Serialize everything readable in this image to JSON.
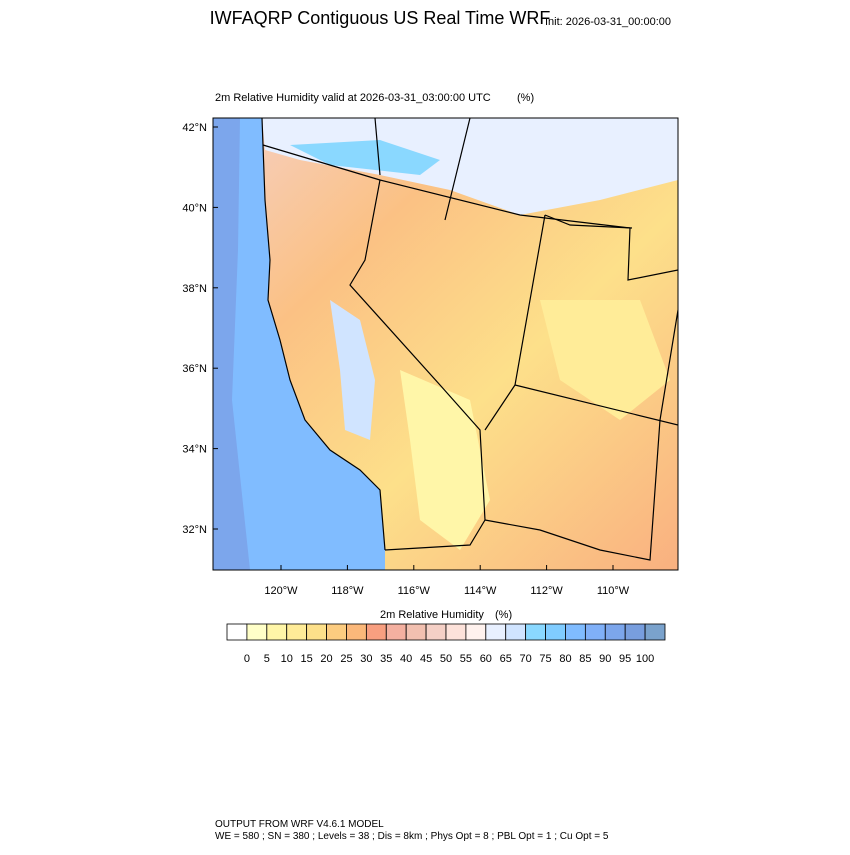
{
  "title": "IWFAQRP Contiguous US Real Time WRF",
  "init": "Init: 2026-03-31_00:00:00",
  "subtitle": "2m Relative Humidity valid at 2026-03-31_03:00:00 UTC",
  "subtitle_units": "(%)",
  "map": {
    "lat_labels": [
      "42°N",
      "40°N",
      "38°N",
      "36°N",
      "34°N",
      "32°N"
    ],
    "lon_labels": [
      "120°W",
      "118°W",
      "116°W",
      "114°W",
      "112°W",
      "110°W"
    ]
  },
  "colorbar": {
    "title": "2m Relative Humidity",
    "units": "(%)",
    "labels": [
      0,
      5,
      10,
      15,
      20,
      25,
      30,
      35,
      40,
      45,
      50,
      55,
      60,
      65,
      70,
      75,
      80,
      85,
      90,
      95,
      100
    ],
    "colors": [
      "#ffffff",
      "#ffffc8",
      "#fff6a8",
      "#ffec98",
      "#fde08a",
      "#fccc80",
      "#fbb87a",
      "#f89f80",
      "#f4b0a0",
      "#f2c0b0",
      "#f5d0c6",
      "#fde2da",
      "#fff2ee",
      "#e8f0ff",
      "#d0e4ff",
      "#8ad8ff",
      "#80ccff",
      "#80bcff",
      "#80b0f8",
      "#7ca6ec",
      "#789ede",
      "#7aa2cc"
    ]
  },
  "footer": [
    "OUTPUT FROM WRF V4.6.1 MODEL",
    "WE = 580 ; SN = 380 ; Levels = 38 ; Dis = 8km ; Phys Opt = 8 ; PBL Opt = 1 ; Cu Opt = 5"
  ]
}
